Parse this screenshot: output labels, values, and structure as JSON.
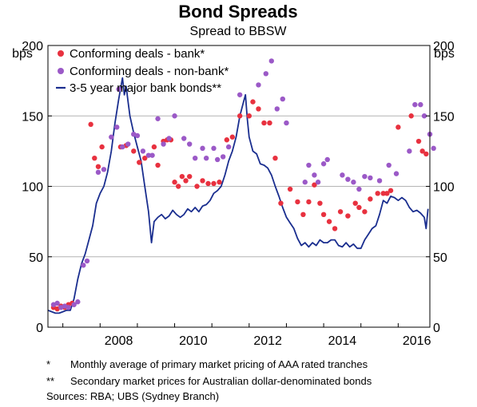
{
  "chart_data": {
    "type": "scatter",
    "title": "Bond Spreads",
    "subtitle": "Spread to BBSW",
    "ylabel_left": "bps",
    "ylabel_right": "bps",
    "xlabel": "",
    "xlim": [
      2006.6,
      2016.85
    ],
    "ylim": [
      0,
      200
    ],
    "x_ticks": [
      2008,
      2010,
      2012,
      2014,
      2016
    ],
    "y_ticks": [
      0,
      50,
      100,
      150,
      200
    ],
    "grid": true,
    "legend_position": "top-left",
    "series": [
      {
        "name": "Conforming deals - bank*",
        "kind": "scatter",
        "color": "#e8313f",
        "points": [
          [
            2006.75,
            14
          ],
          [
            2006.85,
            13
          ],
          [
            2006.95,
            15
          ],
          [
            2007.05,
            14
          ],
          [
            2007.15,
            16
          ],
          [
            2007.25,
            17
          ],
          [
            2007.75,
            144
          ],
          [
            2007.85,
            120
          ],
          [
            2007.95,
            114
          ],
          [
            2008.05,
            128
          ],
          [
            2008.55,
            128
          ],
          [
            2008.7,
            129
          ],
          [
            2008.9,
            125
          ],
          [
            2009.05,
            117
          ],
          [
            2009.2,
            120
          ],
          [
            2009.45,
            128
          ],
          [
            2009.55,
            115
          ],
          [
            2009.7,
            132
          ],
          [
            2009.8,
            133
          ],
          [
            2009.9,
            133
          ],
          [
            2010.0,
            103
          ],
          [
            2010.1,
            100
          ],
          [
            2010.2,
            107
          ],
          [
            2010.3,
            104
          ],
          [
            2010.4,
            107
          ],
          [
            2010.6,
            100
          ],
          [
            2010.75,
            104
          ],
          [
            2010.9,
            102
          ],
          [
            2011.05,
            102
          ],
          [
            2011.2,
            103
          ],
          [
            2011.4,
            133
          ],
          [
            2011.55,
            135
          ],
          [
            2011.75,
            150
          ],
          [
            2012.0,
            150
          ],
          [
            2012.1,
            160
          ],
          [
            2012.25,
            155
          ],
          [
            2012.4,
            145
          ],
          [
            2012.55,
            145
          ],
          [
            2012.7,
            120
          ],
          [
            2012.85,
            88
          ],
          [
            2013.1,
            98
          ],
          [
            2013.3,
            89
          ],
          [
            2013.45,
            80
          ],
          [
            2013.6,
            89
          ],
          [
            2013.75,
            101
          ],
          [
            2013.9,
            88
          ],
          [
            2014.0,
            80
          ],
          [
            2014.15,
            75
          ],
          [
            2014.3,
            70
          ],
          [
            2014.45,
            82
          ],
          [
            2014.65,
            79
          ],
          [
            2014.85,
            88
          ],
          [
            2014.95,
            85
          ],
          [
            2015.1,
            82
          ],
          [
            2015.25,
            91
          ],
          [
            2015.45,
            95
          ],
          [
            2015.6,
            95
          ],
          [
            2015.7,
            95
          ],
          [
            2015.8,
            97
          ],
          [
            2016.0,
            142
          ],
          [
            2016.35,
            150
          ],
          [
            2016.55,
            132
          ],
          [
            2016.65,
            125
          ],
          [
            2016.75,
            123
          ]
        ]
      },
      {
        "name": "Conforming deals - non-bank*",
        "kind": "scatter",
        "color": "#9b59c7",
        "points": [
          [
            2006.75,
            16
          ],
          [
            2006.85,
            17
          ],
          [
            2006.95,
            14
          ],
          [
            2007.05,
            15
          ],
          [
            2007.15,
            14
          ],
          [
            2007.3,
            16
          ],
          [
            2007.4,
            18
          ],
          [
            2007.55,
            44
          ],
          [
            2007.65,
            47
          ],
          [
            2007.95,
            110
          ],
          [
            2008.1,
            112
          ],
          [
            2008.3,
            135
          ],
          [
            2008.45,
            142
          ],
          [
            2008.5,
            169
          ],
          [
            2008.6,
            128
          ],
          [
            2008.75,
            130
          ],
          [
            2008.9,
            137
          ],
          [
            2009.0,
            136
          ],
          [
            2009.15,
            125
          ],
          [
            2009.3,
            122
          ],
          [
            2009.4,
            122
          ],
          [
            2009.55,
            148
          ],
          [
            2009.7,
            130
          ],
          [
            2009.85,
            134
          ],
          [
            2010.0,
            150
          ],
          [
            2010.25,
            134
          ],
          [
            2010.4,
            130
          ],
          [
            2010.55,
            120
          ],
          [
            2010.75,
            127
          ],
          [
            2010.85,
            120
          ],
          [
            2011.05,
            127
          ],
          [
            2011.15,
            119
          ],
          [
            2011.3,
            121
          ],
          [
            2011.45,
            128
          ],
          [
            2011.75,
            165
          ],
          [
            2012.25,
            172
          ],
          [
            2012.45,
            180
          ],
          [
            2012.6,
            189
          ],
          [
            2012.75,
            155
          ],
          [
            2012.9,
            162
          ],
          [
            2013.0,
            145
          ],
          [
            2013.5,
            103
          ],
          [
            2013.6,
            115
          ],
          [
            2013.75,
            108
          ],
          [
            2013.85,
            103
          ],
          [
            2014.0,
            116
          ],
          [
            2014.1,
            119
          ],
          [
            2014.5,
            108
          ],
          [
            2014.65,
            105
          ],
          [
            2014.8,
            103
          ],
          [
            2014.95,
            98
          ],
          [
            2015.1,
            107
          ],
          [
            2015.25,
            106
          ],
          [
            2015.5,
            104
          ],
          [
            2015.75,
            115
          ],
          [
            2015.95,
            109
          ],
          [
            2016.3,
            125
          ],
          [
            2016.45,
            158
          ],
          [
            2016.6,
            158
          ],
          [
            2016.7,
            150
          ],
          [
            2016.85,
            137
          ],
          [
            2016.95,
            127
          ]
        ]
      },
      {
        "name": "3-5 year major bank bonds**",
        "kind": "line",
        "color": "#1a2e8f",
        "points": [
          [
            2006.6,
            12
          ],
          [
            2006.7,
            11
          ],
          [
            2006.8,
            10
          ],
          [
            2006.9,
            10
          ],
          [
            2007.0,
            11
          ],
          [
            2007.1,
            12
          ],
          [
            2007.2,
            12
          ],
          [
            2007.3,
            20
          ],
          [
            2007.4,
            34
          ],
          [
            2007.5,
            45
          ],
          [
            2007.6,
            52
          ],
          [
            2007.7,
            62
          ],
          [
            2007.8,
            72
          ],
          [
            2007.9,
            88
          ],
          [
            2008.0,
            95
          ],
          [
            2008.1,
            100
          ],
          [
            2008.2,
            110
          ],
          [
            2008.3,
            125
          ],
          [
            2008.4,
            145
          ],
          [
            2008.5,
            162
          ],
          [
            2008.6,
            177
          ],
          [
            2008.65,
            165
          ],
          [
            2008.7,
            171
          ],
          [
            2008.75,
            160
          ],
          [
            2008.8,
            150
          ],
          [
            2008.9,
            138
          ],
          [
            2009.0,
            128
          ],
          [
            2009.1,
            118
          ],
          [
            2009.2,
            100
          ],
          [
            2009.3,
            82
          ],
          [
            2009.38,
            60
          ],
          [
            2009.45,
            75
          ],
          [
            2009.55,
            78
          ],
          [
            2009.65,
            80
          ],
          [
            2009.75,
            77
          ],
          [
            2009.85,
            79
          ],
          [
            2009.95,
            83
          ],
          [
            2010.05,
            80
          ],
          [
            2010.15,
            78
          ],
          [
            2010.25,
            80
          ],
          [
            2010.35,
            84
          ],
          [
            2010.45,
            82
          ],
          [
            2010.55,
            85
          ],
          [
            2010.65,
            82
          ],
          [
            2010.75,
            86
          ],
          [
            2010.85,
            87
          ],
          [
            2010.95,
            90
          ],
          [
            2011.05,
            95
          ],
          [
            2011.15,
            97
          ],
          [
            2011.25,
            100
          ],
          [
            2011.35,
            108
          ],
          [
            2011.45,
            118
          ],
          [
            2011.55,
            125
          ],
          [
            2011.65,
            135
          ],
          [
            2011.75,
            150
          ],
          [
            2011.85,
            160
          ],
          [
            2011.9,
            165
          ],
          [
            2011.95,
            148
          ],
          [
            2012.0,
            135
          ],
          [
            2012.1,
            125
          ],
          [
            2012.2,
            123
          ],
          [
            2012.3,
            116
          ],
          [
            2012.4,
            115
          ],
          [
            2012.5,
            113
          ],
          [
            2012.6,
            108
          ],
          [
            2012.7,
            100
          ],
          [
            2012.8,
            93
          ],
          [
            2012.9,
            85
          ],
          [
            2013.0,
            78
          ],
          [
            2013.1,
            74
          ],
          [
            2013.2,
            70
          ],
          [
            2013.3,
            63
          ],
          [
            2013.4,
            58
          ],
          [
            2013.5,
            60
          ],
          [
            2013.6,
            57
          ],
          [
            2013.7,
            60
          ],
          [
            2013.8,
            58
          ],
          [
            2013.9,
            62
          ],
          [
            2014.0,
            60
          ],
          [
            2014.1,
            60
          ],
          [
            2014.2,
            62
          ],
          [
            2014.3,
            62
          ],
          [
            2014.4,
            58
          ],
          [
            2014.5,
            57
          ],
          [
            2014.6,
            60
          ],
          [
            2014.7,
            57
          ],
          [
            2014.8,
            59
          ],
          [
            2014.9,
            56
          ],
          [
            2015.0,
            56
          ],
          [
            2015.1,
            62
          ],
          [
            2015.2,
            66
          ],
          [
            2015.3,
            70
          ],
          [
            2015.4,
            72
          ],
          [
            2015.5,
            80
          ],
          [
            2015.6,
            90
          ],
          [
            2015.7,
            88
          ],
          [
            2015.8,
            93
          ],
          [
            2015.9,
            92
          ],
          [
            2016.0,
            90
          ],
          [
            2016.1,
            92
          ],
          [
            2016.2,
            90
          ],
          [
            2016.3,
            85
          ],
          [
            2016.4,
            82
          ],
          [
            2016.5,
            83
          ],
          [
            2016.6,
            81
          ],
          [
            2016.7,
            78
          ],
          [
            2016.75,
            70
          ],
          [
            2016.8,
            84
          ]
        ]
      }
    ],
    "footnotes": [
      {
        "mark": "*",
        "text": "Monthly average of primary market pricing of AAA rated tranches"
      },
      {
        "mark": "**",
        "text": "Secondary market prices for Australian dollar-denominated bonds"
      }
    ],
    "source": "Sources:  RBA; UBS (Sydney Branch)"
  }
}
